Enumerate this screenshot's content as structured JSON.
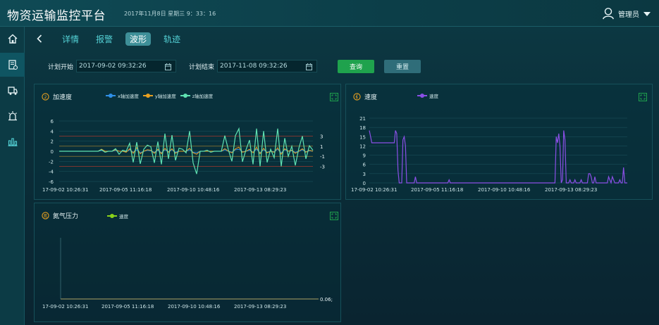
{
  "header": {
    "title": "物资运输监控平台",
    "datetime": "2017年11月8日 星期三 9：33：16",
    "user_name": "管理员"
  },
  "sidebar": {
    "items": [
      {
        "icon": "home-icon"
      },
      {
        "icon": "document-icon",
        "active": true
      },
      {
        "icon": "truck-icon"
      },
      {
        "icon": "alarm-icon"
      },
      {
        "icon": "bar-chart-icon"
      }
    ]
  },
  "tabs": [
    "详情",
    "报警",
    "波形",
    "轨迹"
  ],
  "active_tab": "波形",
  "filter": {
    "start_label": "计划开始",
    "start_value": "2017-09-02 09:32:26",
    "end_label": "计划结束",
    "end_value": "2017-11-08 09:32:26",
    "query_label": "查询",
    "reset_label": "重置"
  },
  "colors": {
    "accent": "#54d2d6",
    "query_button": "#1fa24d",
    "x_series": "#2f8fe6",
    "y_series": "#e8a020",
    "z_series": "#5fe2b2",
    "speed_series": "#8a4fe6",
    "pressure_series": "#8ad21a",
    "threshold_line": "#c0392b"
  },
  "panels": {
    "accel": {
      "title": "加速度"
    },
    "speed": {
      "title": "速度"
    },
    "pressure": {
      "title": "氮气压力"
    }
  },
  "chart_data": [
    {
      "type": "line",
      "title": "加速度",
      "series": [
        {
          "name": "x轴加速度",
          "color": "#2f8fe6"
        },
        {
          "name": "y轴加速度",
          "color": "#e8a020"
        },
        {
          "name": "z轴加速度",
          "color": "#5fe2b2"
        }
      ],
      "y_ticks": [
        6,
        4,
        2,
        0,
        -2,
        -4,
        -6
      ],
      "x_ticks": [
        "17-09-02 10:26:31",
        "2017-09-05 11:16:18",
        "2017-09-10 10:48:16",
        "2017-09-13 08:29:23"
      ],
      "threshold_labels": [
        "3",
        "1",
        "-1",
        "-3"
      ],
      "threshold_values": [
        3,
        1,
        -1,
        -3
      ],
      "ylim": [
        -6,
        6
      ],
      "z_values": [
        0,
        0,
        0,
        0,
        0,
        0,
        0,
        0,
        0,
        0,
        0,
        0,
        0.3,
        -0.2,
        0,
        0,
        0.5,
        -0.6,
        0.2,
        0,
        1.6,
        -2.2,
        1.8,
        -2.5,
        0.4,
        1.2,
        0.9,
        -2.3,
        1.9,
        -2.6,
        3.5,
        -1.5,
        3.2,
        -1.8,
        0.6,
        0.4,
        -0.3,
        4.0,
        -2.3,
        -4.5,
        0,
        0,
        0.2,
        -0.2,
        0,
        0,
        0,
        3.1,
        0.3,
        -2.0,
        3.1,
        4.5,
        -2.1,
        0.3,
        2.2,
        -2.6,
        4.5,
        -3.0,
        4.0,
        -2.2,
        0.4,
        -1.3,
        4.5,
        -3.0,
        2.6,
        -1.0,
        1.0,
        -2.8,
        0.6,
        3.0,
        -1.5,
        1.1,
        0.2
      ],
      "y_values": [
        0,
        0,
        0,
        0,
        0,
        0,
        0,
        0,
        0,
        0,
        0,
        0,
        0.4,
        0,
        0,
        0,
        0.3,
        0,
        0,
        -0.2,
        0.5,
        -0.4,
        0.7,
        -0.5,
        0,
        0.3,
        0.2,
        -0.4,
        0.4,
        -0.5,
        0.6,
        -0.2,
        0.5,
        -0.4,
        0,
        0,
        0,
        0.6,
        -0.3,
        -0.6,
        0,
        0,
        0,
        0,
        0,
        0,
        0,
        0.5,
        0,
        -0.3,
        0.5,
        0.8,
        -0.2,
        0,
        0.4,
        -0.3,
        0.8,
        -0.5,
        0.6,
        -0.3,
        0,
        -0.2,
        0.7,
        -0.6,
        0.5,
        0,
        0.2,
        -0.4,
        0,
        0.5,
        -0.2,
        0.2,
        0
      ],
      "x_values": [
        0,
        0,
        0,
        0,
        0,
        0,
        0,
        0,
        0,
        0,
        0,
        0,
        0.2,
        0,
        0,
        0,
        0.2,
        0,
        0,
        -0.1,
        0.3,
        -0.2,
        0.3,
        -0.3,
        0,
        0.2,
        0.1,
        -0.2,
        0.2,
        -0.3,
        0.3,
        -0.1,
        0.3,
        -0.2,
        0,
        0,
        0,
        0.3,
        -0.2,
        -0.3,
        0,
        0,
        0,
        0,
        0,
        0,
        0,
        0.3,
        0,
        -0.2,
        0.3,
        0.4,
        -0.1,
        0,
        0.2,
        -0.2,
        0.4,
        -0.3,
        0.3,
        -0.2,
        0,
        -0.1,
        0.4,
        -0.3,
        0.3,
        0,
        0.1,
        -0.2,
        0,
        0.3,
        -0.1,
        0.1,
        0
      ]
    },
    {
      "type": "line",
      "title": "速度",
      "series": [
        {
          "name": "速度",
          "color": "#8a4fe6"
        }
      ],
      "y_ticks": [
        21,
        18,
        15,
        12,
        9,
        6,
        3,
        0
      ],
      "x_ticks": [
        "17-09-02 10:26:31",
        "2017-09-05 11:16:18",
        "2017-09-10 10:48:16",
        "2017-09-13 08:29:23"
      ],
      "ylim": [
        0,
        21
      ],
      "values": [
        17,
        15,
        13,
        13,
        13,
        13,
        13,
        13,
        13,
        13,
        13,
        13,
        13,
        13,
        13,
        13,
        13,
        13,
        13,
        13,
        13,
        17,
        16,
        4,
        0,
        0,
        0,
        14,
        15,
        12,
        0,
        0,
        0,
        0,
        0,
        0,
        0,
        2,
        0,
        0,
        0,
        0,
        0,
        0,
        0,
        0,
        0,
        0,
        0,
        0,
        0,
        0,
        0,
        0,
        0,
        0,
        0,
        0,
        0,
        0,
        0,
        0,
        0,
        0,
        1,
        0,
        0,
        0,
        0,
        0,
        0,
        0,
        0,
        0,
        0,
        0,
        0,
        0,
        0,
        0,
        0,
        0,
        0,
        0,
        0,
        0,
        0,
        0,
        0,
        0,
        0,
        0,
        0,
        0,
        0,
        0,
        0,
        0,
        0,
        0,
        0,
        0,
        0,
        0,
        0,
        0,
        0,
        0,
        0,
        0,
        0,
        0,
        0,
        0,
        0,
        0,
        0,
        0,
        0,
        0,
        0,
        0,
        0,
        0,
        0,
        0,
        0,
        0,
        0,
        0,
        0,
        0,
        0,
        0,
        0,
        0,
        0,
        0,
        0,
        0,
        0,
        0,
        0,
        0,
        0,
        0,
        0,
        0,
        0,
        0,
        15,
        13,
        16,
        12,
        0,
        1,
        17,
        14,
        0,
        0,
        0,
        1,
        0,
        0,
        0,
        1,
        0,
        0,
        0,
        0,
        1,
        0,
        0,
        0,
        0,
        0,
        3,
        3,
        2,
        0,
        0,
        2,
        0,
        0,
        0,
        0,
        0,
        0,
        0,
        0,
        0,
        0,
        2,
        1,
        0,
        2,
        1,
        0,
        0,
        0,
        0,
        1,
        0,
        0,
        5,
        0,
        0,
        0
      ]
    },
    {
      "type": "line",
      "title": "氮气压力",
      "series": [
        {
          "name": "速度",
          "color": "#8ad21a"
        }
      ],
      "x_ticks": [
        "17-09-02 10:26:31",
        "2017-09-05 11:16:18",
        "2017-09-10 10:48:16",
        "2017-09-13 08:29:23"
      ],
      "end_label": "0.06;",
      "values": [
        0.06,
        0.06
      ]
    }
  ]
}
